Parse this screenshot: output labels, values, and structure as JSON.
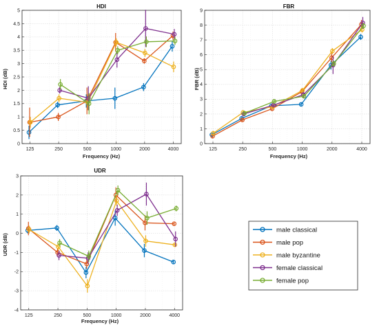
{
  "colors": {
    "male classical": "#0072BD",
    "male pop": "#D95319",
    "male byzantine": "#EDB120",
    "female classical": "#7E2F8E",
    "female pop": "#77AC30"
  },
  "legend": {
    "placement": "lower-right",
    "entries": [
      "male classical",
      "male pop",
      "male byzantine",
      "female classical",
      "female pop"
    ]
  },
  "chart_data": [
    {
      "type": "line",
      "title": "HDI",
      "xlabel": "Frequency (Hz)",
      "ylabel": "HDI (dB)",
      "x": [
        125,
        250,
        500,
        1000,
        2000,
        4000
      ],
      "x_scale": "log",
      "ylim": [
        0,
        5
      ],
      "yticks": [
        0,
        0.5,
        1,
        1.5,
        2,
        2.5,
        3,
        3.5,
        4,
        4.5,
        5
      ],
      "grid": true,
      "series": [
        {
          "name": "male classical",
          "values": [
            0.42,
            1.45,
            1.6,
            1.7,
            2.12,
            3.65
          ],
          "err": [
            0.25,
            0.12,
            0.25,
            0.4,
            0.15,
            0.2
          ]
        },
        {
          "name": "male pop",
          "values": [
            0.8,
            1.0,
            1.6,
            3.8,
            3.1,
            4.05
          ],
          "err": [
            0.55,
            0.15,
            0.5,
            0.35,
            0.1,
            0.15
          ]
        },
        {
          "name": "male byzantine",
          "values": [
            0.8,
            1.7,
            1.55,
            3.8,
            3.4,
            2.88
          ],
          "err": [
            0.2,
            0.15,
            0.3,
            0.15,
            0.15,
            0.2
          ]
        },
        {
          "name": "female classical",
          "values": [
            null,
            2.0,
            1.7,
            3.15,
            4.32,
            4.1
          ],
          "err": [
            0,
            0.12,
            0.45,
            0.3,
            0.7,
            0.2
          ]
        },
        {
          "name": "female pop",
          "values": [
            null,
            2.22,
            1.5,
            3.5,
            3.82,
            3.85
          ],
          "err": [
            0,
            0.2,
            0.4,
            0.15,
            0.2,
            0.15
          ]
        }
      ]
    },
    {
      "type": "line",
      "title": "FBR",
      "xlabel": "Frequency (Hz)",
      "ylabel": "FBR (dB)",
      "x": [
        125,
        250,
        500,
        1000,
        2000,
        4000
      ],
      "x_scale": "log",
      "ylim": [
        0,
        9
      ],
      "yticks": [
        0,
        1,
        2,
        3,
        4,
        5,
        6,
        7,
        8,
        9
      ],
      "grid": true,
      "series": [
        {
          "name": "male classical",
          "values": [
            0.6,
            1.7,
            2.55,
            2.65,
            5.3,
            7.2
          ],
          "err": [
            0.15,
            0.1,
            0.15,
            0.1,
            0.3,
            0.2
          ]
        },
        {
          "name": "male pop",
          "values": [
            0.5,
            1.6,
            2.35,
            3.5,
            5.8,
            8.05
          ],
          "err": [
            0.15,
            0.1,
            0.15,
            0.2,
            0.3,
            0.3
          ]
        },
        {
          "name": "male byzantine",
          "values": [
            0.7,
            2.1,
            2.5,
            3.6,
            6.25,
            7.7
          ],
          "err": [
            0.15,
            0.1,
            0.15,
            0.15,
            0.2,
            0.2
          ]
        },
        {
          "name": "female classical",
          "values": [
            null,
            2.0,
            2.6,
            3.3,
            5.3,
            8.15
          ],
          "err": [
            0,
            0.1,
            0.15,
            0.2,
            0.6,
            0.4
          ]
        },
        {
          "name": "female pop",
          "values": [
            null,
            2.05,
            2.85,
            3.2,
            5.4,
            7.95
          ],
          "err": [
            0,
            0.1,
            0.15,
            0.15,
            0.2,
            0.2
          ]
        }
      ]
    },
    {
      "type": "line",
      "title": "UDR",
      "xlabel": "Frequency (Hz)",
      "ylabel": "UDR (dB)",
      "x": [
        125,
        250,
        500,
        1000,
        2000,
        4000
      ],
      "x_scale": "log",
      "ylim": [
        -4,
        3
      ],
      "yticks": [
        -4,
        -3,
        -2,
        -1,
        0,
        1,
        2,
        3
      ],
      "grid": true,
      "series": [
        {
          "name": "male classical",
          "values": [
            0.15,
            0.28,
            -2.05,
            0.8,
            -0.9,
            -1.5
          ],
          "err": [
            0.15,
            0.15,
            0.3,
            0.4,
            0.35,
            0.1
          ]
        },
        {
          "name": "male pop",
          "values": [
            0.25,
            -1.0,
            -1.6,
            2.0,
            0.55,
            0.5
          ],
          "err": [
            0.35,
            0.2,
            0.25,
            0.4,
            0.4,
            0.1
          ]
        },
        {
          "name": "male byzantine",
          "values": [
            0.2,
            -0.7,
            -2.75,
            1.7,
            -0.4,
            -0.6
          ],
          "err": [
            0.2,
            0.2,
            0.35,
            0.25,
            0.3,
            0.1
          ]
        },
        {
          "name": "female classical",
          "values": [
            null,
            -1.15,
            -1.3,
            1.2,
            2.05,
            -0.3
          ],
          "err": [
            0,
            0.25,
            0.3,
            0.3,
            0.6,
            0.4
          ]
        },
        {
          "name": "female pop",
          "values": [
            null,
            -0.5,
            -1.2,
            2.25,
            0.8,
            1.3
          ],
          "err": [
            0,
            0.2,
            0.3,
            0.25,
            0.35,
            0.15
          ]
        }
      ]
    }
  ]
}
